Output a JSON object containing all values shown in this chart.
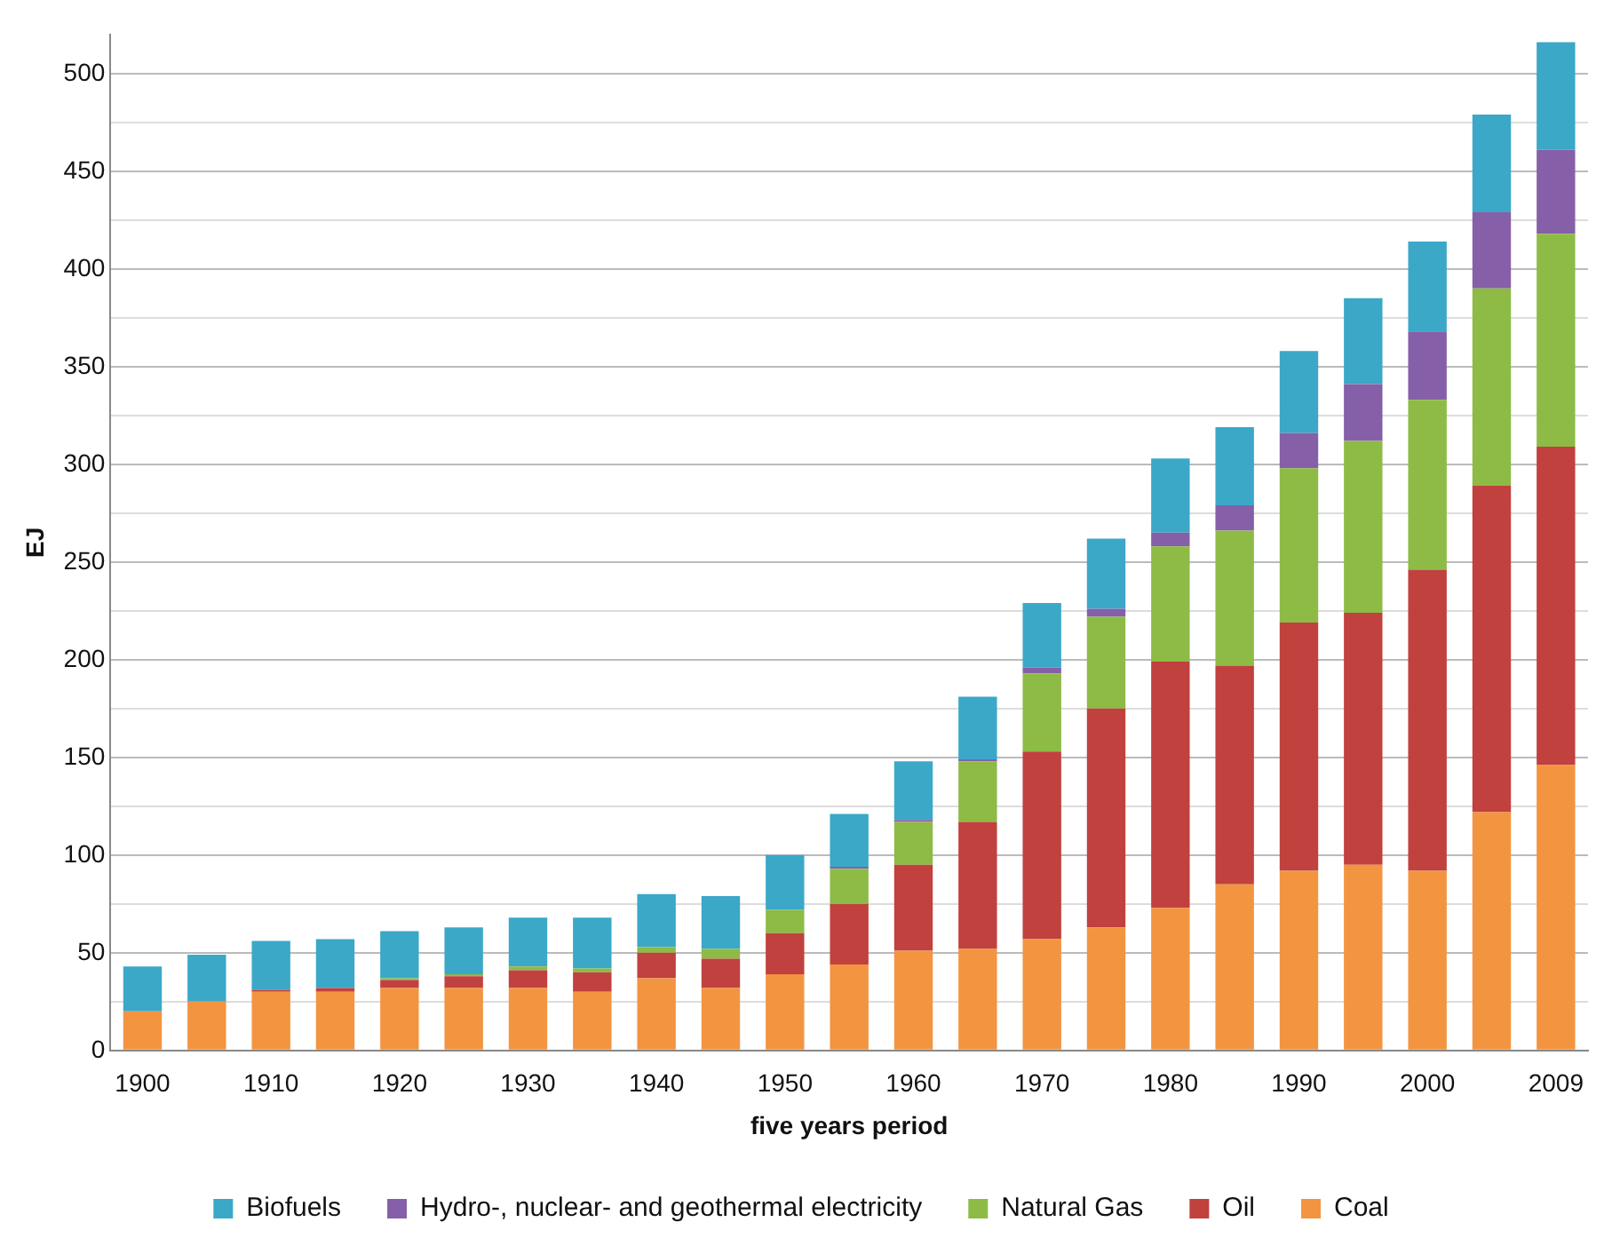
{
  "chart_data": {
    "type": "bar",
    "stacked": true,
    "xlabel": "five years period",
    "ylabel": "EJ",
    "categories": [
      "1900",
      null,
      "1910",
      null,
      "1920",
      null,
      "1930",
      null,
      "1940",
      null,
      "1950",
      null,
      "1960",
      null,
      "1970",
      null,
      "1980",
      null,
      "1990",
      null,
      "2000",
      null,
      "2009"
    ],
    "series": [
      {
        "name": "Coal",
        "color": "#f39440",
        "values": [
          20,
          25,
          30,
          30,
          32,
          32,
          32,
          30,
          37,
          32,
          39,
          44,
          51,
          52,
          57,
          63,
          73,
          85,
          92,
          95,
          92,
          122,
          146
        ]
      },
      {
        "name": "Oil",
        "color": "#c0413e",
        "values": [
          0,
          0,
          1,
          2,
          4,
          6,
          9,
          10,
          13,
          15,
          21,
          31,
          44,
          65,
          96,
          112,
          126,
          112,
          127,
          129,
          154,
          167,
          163
        ]
      },
      {
        "name": "Natural Gas",
        "color": "#8dbb45",
        "values": [
          0,
          0,
          0,
          0,
          1,
          1,
          2,
          2,
          3,
          5,
          12,
          18,
          22,
          31,
          40,
          47,
          59,
          69,
          79,
          88,
          87,
          101,
          109
        ]
      },
      {
        "name": "Hydro-, nuclear- and geothermal electricity",
        "color": "#8560a8",
        "values": [
          0,
          0,
          0,
          0,
          0,
          0,
          0,
          0,
          0,
          0,
          0,
          1,
          1,
          1,
          3,
          4,
          7,
          13,
          18,
          29,
          35,
          39,
          43
        ]
      },
      {
        "name": "Biofuels",
        "color": "#3ba8c8",
        "values": [
          23,
          24,
          25,
          25,
          24,
          24,
          25,
          26,
          27,
          27,
          28,
          27,
          30,
          32,
          33,
          36,
          38,
          40,
          42,
          44,
          46,
          50,
          55
        ]
      }
    ],
    "ylim": [
      0,
      520
    ],
    "yticks": [
      0,
      {
        "value": 25,
        "label": null
      },
      50,
      {
        "value": 75,
        "label": null
      },
      100,
      {
        "value": 125,
        "label": null
      },
      150,
      {
        "value": 175,
        "label": null
      },
      200,
      {
        "value": 225,
        "label": null
      },
      250,
      {
        "value": 275,
        "label": null
      },
      300,
      {
        "value": 325,
        "label": null
      },
      350,
      {
        "value": 375,
        "label": null
      },
      400,
      {
        "value": 425,
        "label": null
      },
      450,
      {
        "value": 475,
        "label": null
      },
      500
    ],
    "grid": "y",
    "legend": "bottom"
  }
}
